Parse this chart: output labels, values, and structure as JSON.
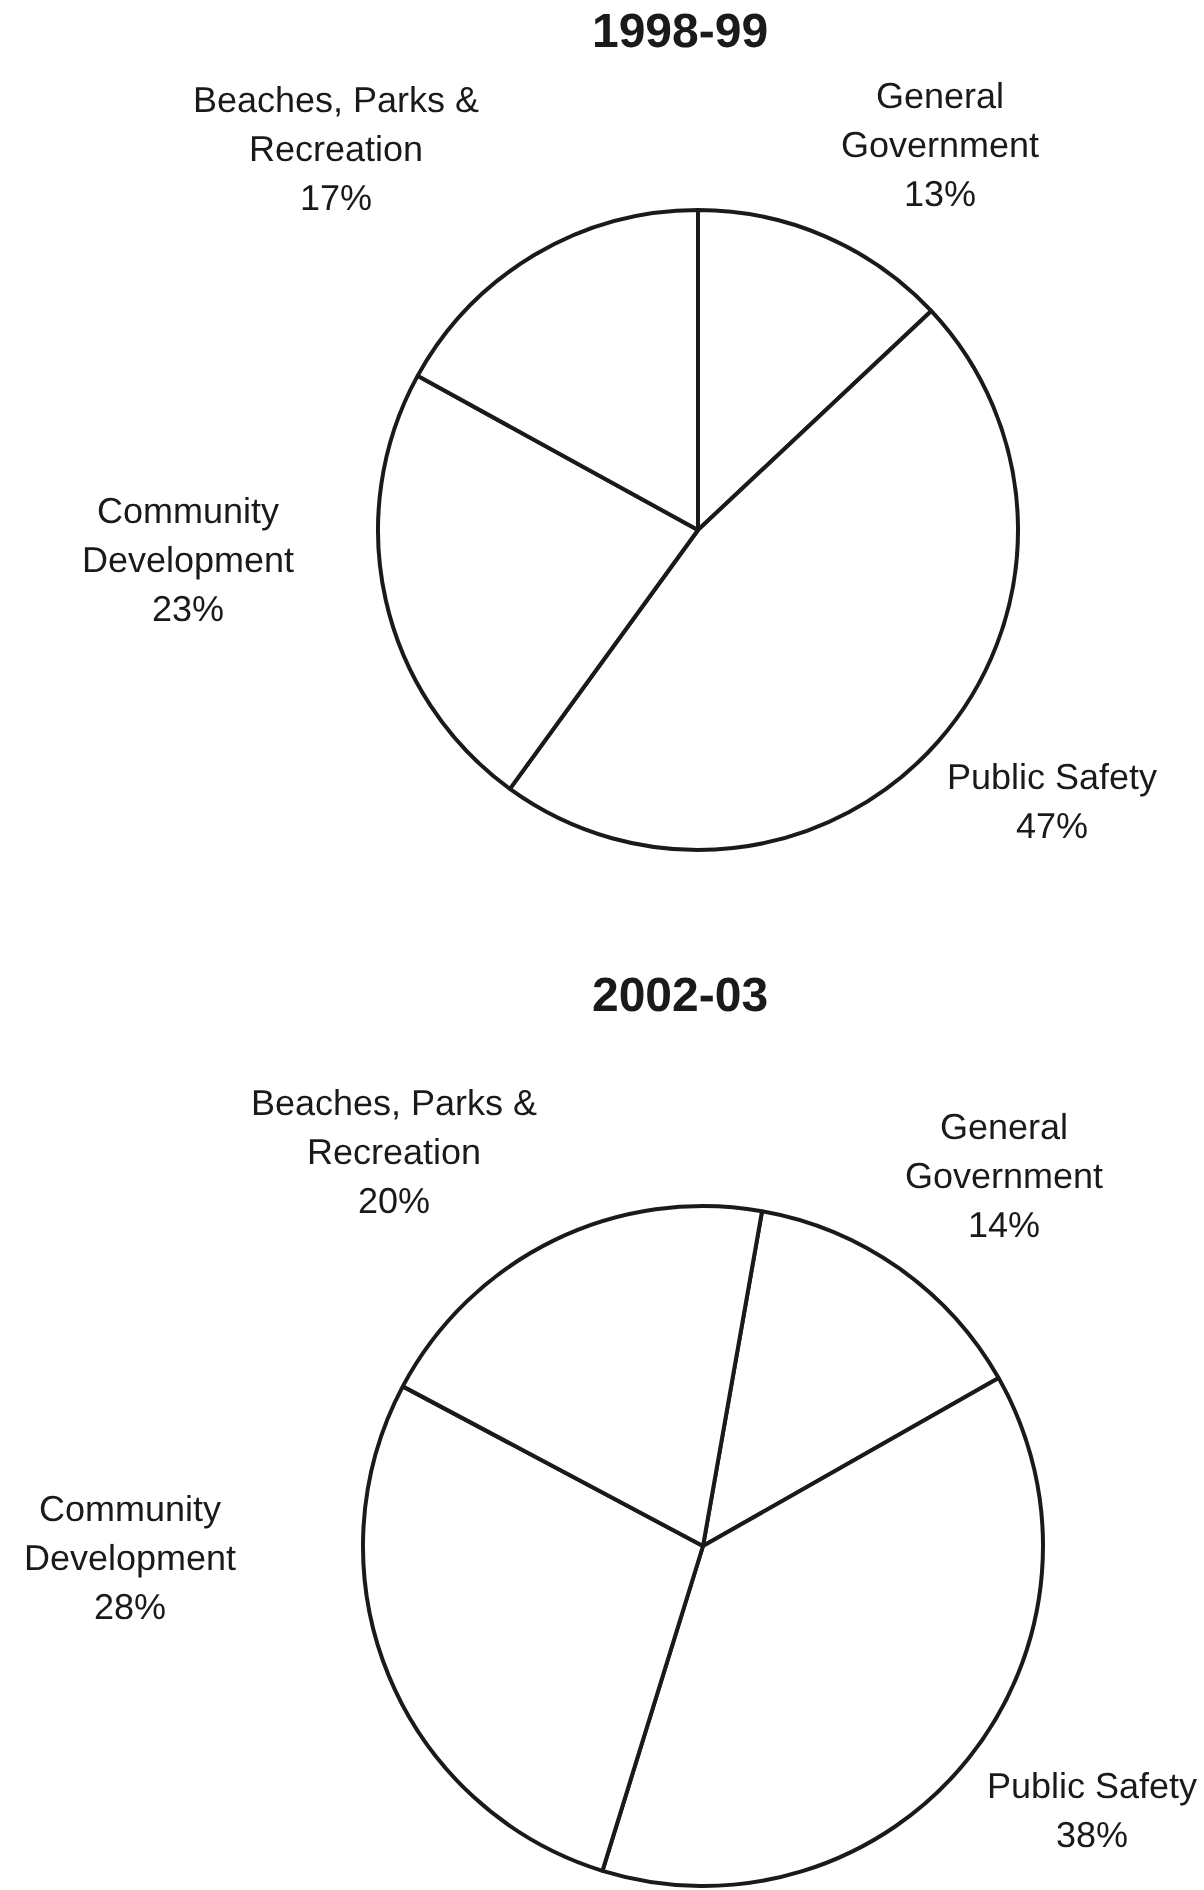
{
  "chart_data": [
    {
      "type": "pie",
      "title": "1998-99",
      "categories": [
        "General Government",
        "Public Safety",
        "Community Development",
        "Beaches, Parks & Recreation"
      ],
      "values": [
        13,
        47,
        23,
        17
      ],
      "value_labels": [
        "13%",
        "47%",
        "23%",
        "17%"
      ],
      "colors": [
        "#ffffff",
        "#ffffff",
        "#ffffff",
        "#ffffff"
      ]
    },
    {
      "type": "pie",
      "title": "2002-03",
      "categories": [
        "General Government",
        "Public Safety",
        "Community Development",
        "Beaches, Parks & Recreation"
      ],
      "values": [
        14,
        38,
        28,
        20
      ],
      "value_labels": [
        "14%",
        "38%",
        "28%",
        "20%"
      ],
      "colors": [
        "#ffffff",
        "#ffffff",
        "#ffffff",
        "#ffffff"
      ]
    }
  ]
}
